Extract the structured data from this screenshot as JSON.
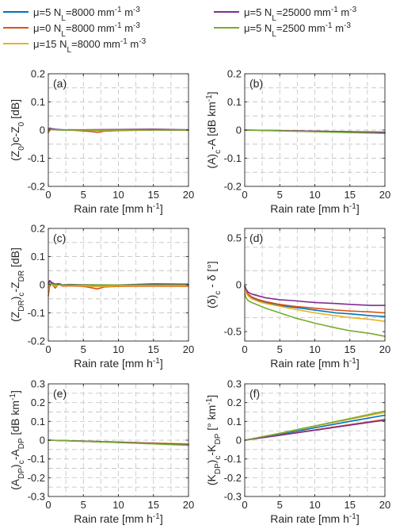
{
  "legend": [
    {
      "mu": "5",
      "nl": "8000",
      "color": "#0072bd"
    },
    {
      "mu": "0",
      "nl": "8000",
      "color": "#d95319"
    },
    {
      "mu": "15",
      "nl": "8000",
      "color": "#edb120"
    },
    {
      "mu": "5",
      "nl": "25000",
      "color": "#7e2f8e"
    },
    {
      "mu": "5",
      "nl": "2500",
      "color": "#77ac30"
    }
  ],
  "chart_data": [
    {
      "type": "line",
      "panel_label": "(a)",
      "xlabel": "Rain rate [mm h-1]",
      "ylabel": "(Z0)c-Z0 [dB]",
      "xlim": [
        0,
        20
      ],
      "ylim": [
        -0.2,
        0.2
      ],
      "xticks": [
        0,
        5,
        10,
        15,
        20
      ],
      "yticks": [
        -0.2,
        -0.1,
        0,
        0.1,
        0.2
      ],
      "ytick_labels": [
        "-0.2",
        "-0.1",
        "0",
        "0.1",
        "0.2"
      ],
      "grid": true,
      "series": [
        {
          "x": [
            0,
            0.2,
            0.5,
            1,
            2,
            3,
            5,
            7,
            10,
            15,
            20
          ],
          "y": [
            -0.004,
            0.004,
            0.003,
            0.001,
            0,
            0.001,
            0,
            -0.001,
            0,
            0.001,
            0
          ]
        },
        {
          "x": [
            0,
            0.2,
            0.5,
            1,
            2,
            3,
            5,
            6,
            7,
            8,
            10,
            15,
            20
          ],
          "y": [
            -0.01,
            0,
            0.005,
            0.002,
            0.001,
            0,
            -0.003,
            -0.005,
            -0.008,
            -0.004,
            -0.002,
            0,
            0
          ]
        },
        {
          "x": [
            0,
            0.2,
            0.5,
            1,
            2,
            3,
            5,
            7,
            10,
            15,
            20
          ],
          "y": [
            -0.005,
            0.006,
            0.004,
            0.002,
            0.001,
            0,
            0,
            -0.002,
            -0.001,
            0,
            0.001
          ]
        },
        {
          "x": [
            0,
            0.2,
            0.5,
            1,
            2,
            5,
            10,
            15,
            20
          ],
          "y": [
            0.003,
            0.007,
            0.005,
            0.003,
            0.001,
            0.001,
            0.002,
            0.003,
            0.001
          ]
        },
        {
          "x": [
            0,
            0.2,
            0.5,
            1,
            2,
            5,
            10,
            15,
            20
          ],
          "y": [
            0,
            0.003,
            0.002,
            0.001,
            0,
            0,
            0,
            0,
            0
          ]
        }
      ]
    },
    {
      "type": "line",
      "panel_label": "(b)",
      "xlabel": "Rain rate [mm h-1]",
      "ylabel": "(A)c-A [dB km-1]",
      "xlim": [
        0,
        20
      ],
      "ylim": [
        -0.2,
        0.2
      ],
      "xticks": [
        0,
        5,
        10,
        15,
        20
      ],
      "yticks": [
        -0.2,
        -0.1,
        0,
        0.1,
        0.2
      ],
      "ytick_labels": [
        "-0.2",
        "-0.1",
        "0",
        "0.1",
        "0.2"
      ],
      "grid": true,
      "series": [
        {
          "x": [
            0,
            5,
            10,
            15,
            20
          ],
          "y": [
            0,
            -0.002,
            -0.004,
            -0.006,
            -0.008
          ]
        },
        {
          "x": [
            0,
            5,
            10,
            15,
            20
          ],
          "y": [
            0,
            -0.002,
            -0.005,
            -0.007,
            -0.009
          ]
        },
        {
          "x": [
            0,
            5,
            10,
            15,
            20
          ],
          "y": [
            0,
            -0.002,
            -0.004,
            -0.006,
            -0.008
          ]
        },
        {
          "x": [
            0,
            5,
            10,
            15,
            20
          ],
          "y": [
            0,
            -0.002,
            -0.004,
            -0.006,
            -0.008
          ]
        },
        {
          "x": [
            0,
            5,
            10,
            15,
            20
          ],
          "y": [
            0,
            -0.003,
            -0.006,
            -0.009,
            -0.012
          ]
        }
      ]
    },
    {
      "type": "line",
      "panel_label": "(c)",
      "xlabel": "Rain rate [mm h-1]",
      "ylabel": "(ZDR)c-ZDR [dB]",
      "xlim": [
        0,
        20
      ],
      "ylim": [
        -0.2,
        0.2
      ],
      "xticks": [
        0,
        5,
        10,
        15,
        20
      ],
      "yticks": [
        -0.2,
        -0.1,
        0,
        0.1,
        0.2
      ],
      "ytick_labels": [
        "-0.2",
        "-0.1",
        "0",
        "0.1",
        "0.2"
      ],
      "grid": true,
      "series": [
        {
          "x": [
            0,
            0.2,
            0.5,
            1,
            1.5,
            2,
            3,
            5,
            7,
            10,
            15,
            20
          ],
          "y": [
            -0.01,
            0.008,
            0.004,
            -0.004,
            0.002,
            -0.002,
            0,
            -0.003,
            -0.006,
            -0.003,
            -0.002,
            -0.003
          ]
        },
        {
          "x": [
            0,
            0.15,
            0.4,
            1,
            1.5,
            2,
            3,
            5,
            6,
            7,
            8,
            10,
            15,
            20
          ],
          "y": [
            -0.04,
            -0.01,
            0.005,
            -0.012,
            0.003,
            -0.005,
            -0.004,
            -0.006,
            -0.01,
            -0.015,
            -0.008,
            -0.006,
            -0.005,
            -0.006
          ]
        },
        {
          "x": [
            0,
            0.2,
            0.5,
            1,
            1.5,
            2,
            3,
            5,
            7,
            10,
            15,
            20
          ],
          "y": [
            -0.02,
            0.006,
            0.002,
            -0.006,
            0,
            -0.003,
            -0.002,
            -0.004,
            -0.007,
            -0.004,
            -0.003,
            -0.004
          ]
        },
        {
          "x": [
            0,
            0.2,
            0.5,
            1,
            1.5,
            2,
            3,
            5,
            10,
            15,
            20
          ],
          "y": [
            0.005,
            0.015,
            0.008,
            0.002,
            0.004,
            0,
            0.001,
            0,
            -0.001,
            0.003,
            0.002
          ]
        },
        {
          "x": [
            0,
            0.2,
            0.5,
            1,
            2,
            5,
            10,
            15,
            20
          ],
          "y": [
            0,
            0.004,
            0.002,
            0,
            -0.001,
            -0.001,
            -0.001,
            -0.001,
            -0.001
          ]
        }
      ]
    },
    {
      "type": "line",
      "panel_label": "(d)",
      "xlabel": "Rain rate [mm h-1]",
      "ylabel": "(δ)c - δ [°]",
      "xlim": [
        0,
        20
      ],
      "ylim": [
        -0.6,
        0.6
      ],
      "xticks": [
        0,
        5,
        10,
        15,
        20
      ],
      "yticks": [
        -0.5,
        0,
        0.5
      ],
      "ytick_labels": [
        "-0.5",
        "0",
        "0.5"
      ],
      "grid": true,
      "series": [
        {
          "x": [
            0,
            0.2,
            0.5,
            1,
            2,
            3,
            5,
            7,
            10,
            13,
            15,
            18,
            20
          ],
          "y": [
            -0.02,
            -0.08,
            -0.11,
            -0.14,
            -0.17,
            -0.19,
            -0.22,
            -0.24,
            -0.27,
            -0.3,
            -0.31,
            -0.33,
            -0.34
          ]
        },
        {
          "x": [
            0,
            0.2,
            0.5,
            1,
            2,
            3,
            5,
            7,
            10,
            13,
            15,
            18,
            20
          ],
          "y": [
            -0.01,
            -0.07,
            -0.1,
            -0.13,
            -0.16,
            -0.18,
            -0.21,
            -0.23,
            -0.25,
            -0.27,
            -0.28,
            -0.29,
            -0.3
          ]
        },
        {
          "x": [
            0,
            0.2,
            0.5,
            1,
            2,
            3,
            5,
            7,
            10,
            13,
            15,
            18,
            20
          ],
          "y": [
            -0.03,
            -0.09,
            -0.12,
            -0.15,
            -0.18,
            -0.2,
            -0.23,
            -0.26,
            -0.3,
            -0.33,
            -0.35,
            -0.37,
            -0.39
          ]
        },
        {
          "x": [
            0,
            0.2,
            0.5,
            1,
            2,
            3,
            5,
            7,
            10,
            13,
            15,
            18,
            20
          ],
          "y": [
            -0.01,
            -0.05,
            -0.08,
            -0.1,
            -0.12,
            -0.14,
            -0.16,
            -0.17,
            -0.19,
            -0.2,
            -0.21,
            -0.22,
            -0.22
          ]
        },
        {
          "x": [
            0,
            0.2,
            0.5,
            1,
            2,
            3,
            5,
            7,
            10,
            13,
            15,
            18,
            20
          ],
          "y": [
            -0.1,
            -0.14,
            -0.17,
            -0.19,
            -0.22,
            -0.25,
            -0.3,
            -0.35,
            -0.41,
            -0.46,
            -0.49,
            -0.52,
            -0.55
          ]
        }
      ]
    },
    {
      "type": "line",
      "panel_label": "(e)",
      "xlabel": "Rain rate [mm h-1]",
      "ylabel": "(ADP)c-ADP [dB km-1]",
      "xlim": [
        0,
        20
      ],
      "ylim": [
        -0.3,
        0.3
      ],
      "xticks": [
        0,
        5,
        10,
        15,
        20
      ],
      "yticks": [
        -0.3,
        -0.2,
        -0.1,
        0,
        0.1,
        0.2,
        0.3
      ],
      "ytick_labels": [
        "-0.3",
        "-0.2",
        "-0.1",
        "0",
        "0.1",
        "0.2",
        "0.3"
      ],
      "grid": true,
      "series": [
        {
          "x": [
            0,
            5,
            10,
            15,
            20
          ],
          "y": [
            0,
            -0.005,
            -0.01,
            -0.016,
            -0.021
          ]
        },
        {
          "x": [
            0,
            5,
            10,
            15,
            20
          ],
          "y": [
            0,
            -0.006,
            -0.012,
            -0.018,
            -0.024
          ]
        },
        {
          "x": [
            0,
            5,
            10,
            15,
            20
          ],
          "y": [
            0,
            -0.005,
            -0.01,
            -0.015,
            -0.02
          ]
        },
        {
          "x": [
            0,
            5,
            10,
            15,
            20
          ],
          "y": [
            0,
            -0.005,
            -0.011,
            -0.017,
            -0.023
          ]
        },
        {
          "x": [
            0,
            5,
            10,
            15,
            20
          ],
          "y": [
            0,
            -0.006,
            -0.013,
            -0.02,
            -0.027
          ]
        }
      ]
    },
    {
      "type": "line",
      "panel_label": "(f)",
      "xlabel": "Rain rate [mm h-1]",
      "ylabel": "(KDP)c-KDP [° km-1]",
      "xlim": [
        0,
        20
      ],
      "ylim": [
        -0.3,
        0.3
      ],
      "xticks": [
        0,
        5,
        10,
        15,
        20
      ],
      "yticks": [
        -0.3,
        -0.2,
        -0.1,
        0,
        0.1,
        0.2,
        0.3
      ],
      "ytick_labels": [
        "-0.3",
        "-0.2",
        "-0.1",
        "0",
        "0.1",
        "0.2",
        "0.3"
      ],
      "grid": true,
      "series": [
        {
          "x": [
            0,
            5,
            10,
            15,
            20
          ],
          "y": [
            0,
            0.032,
            0.066,
            0.1,
            0.133
          ]
        },
        {
          "x": [
            0,
            5,
            10,
            15,
            20
          ],
          "y": [
            0,
            0.027,
            0.055,
            0.083,
            0.11
          ]
        },
        {
          "x": [
            0,
            5,
            10,
            15,
            20
          ],
          "y": [
            0,
            0.036,
            0.074,
            0.111,
            0.148
          ]
        },
        {
          "x": [
            0,
            5,
            10,
            15,
            20
          ],
          "y": [
            0,
            0.026,
            0.053,
            0.08,
            0.107
          ]
        },
        {
          "x": [
            0,
            5,
            10,
            15,
            20
          ],
          "y": [
            0,
            0.037,
            0.076,
            0.115,
            0.155
          ]
        }
      ]
    }
  ]
}
